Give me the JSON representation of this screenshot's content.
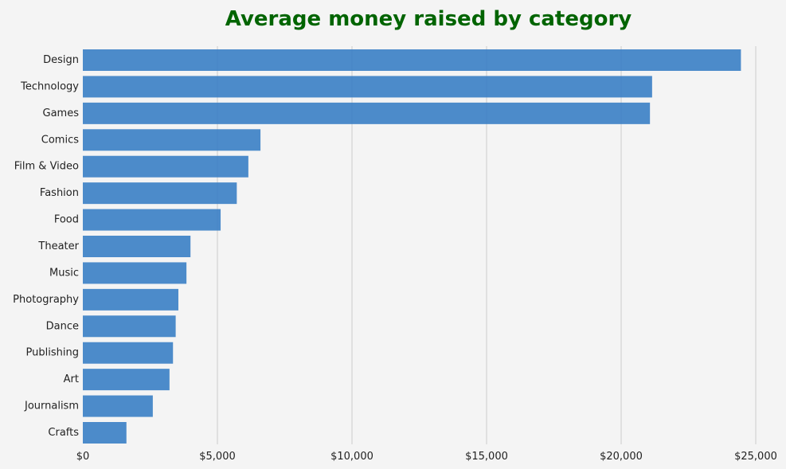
{
  "chart_data": {
    "type": "bar",
    "orientation": "horizontal",
    "title": "Average money raised by category",
    "xlabel": "",
    "ylabel": "",
    "categories": [
      "Design",
      "Technology",
      "Games",
      "Comics",
      "Film & Video",
      "Fashion",
      "Food",
      "Theater",
      "Music",
      "Photography",
      "Dance",
      "Publishing",
      "Art",
      "Journalism",
      "Crafts"
    ],
    "values": [
      24450,
      21150,
      21070,
      6600,
      6150,
      5720,
      5120,
      4000,
      3850,
      3550,
      3450,
      3350,
      3220,
      2600,
      1620
    ],
    "xlim": [
      0,
      25000
    ],
    "x_ticks": [
      0,
      5000,
      10000,
      15000,
      20000,
      25000
    ],
    "x_tick_labels": [
      "$0",
      "$5,000",
      "$10,000",
      "$15,000",
      "$20,000",
      "$25,000"
    ],
    "grid": "vertical",
    "legend": "none"
  },
  "colors": {
    "background": "#f4f4f4",
    "bar": "#3d81c6",
    "grid": "#d9d9d9",
    "title": "#006400",
    "text": "#222222"
  }
}
